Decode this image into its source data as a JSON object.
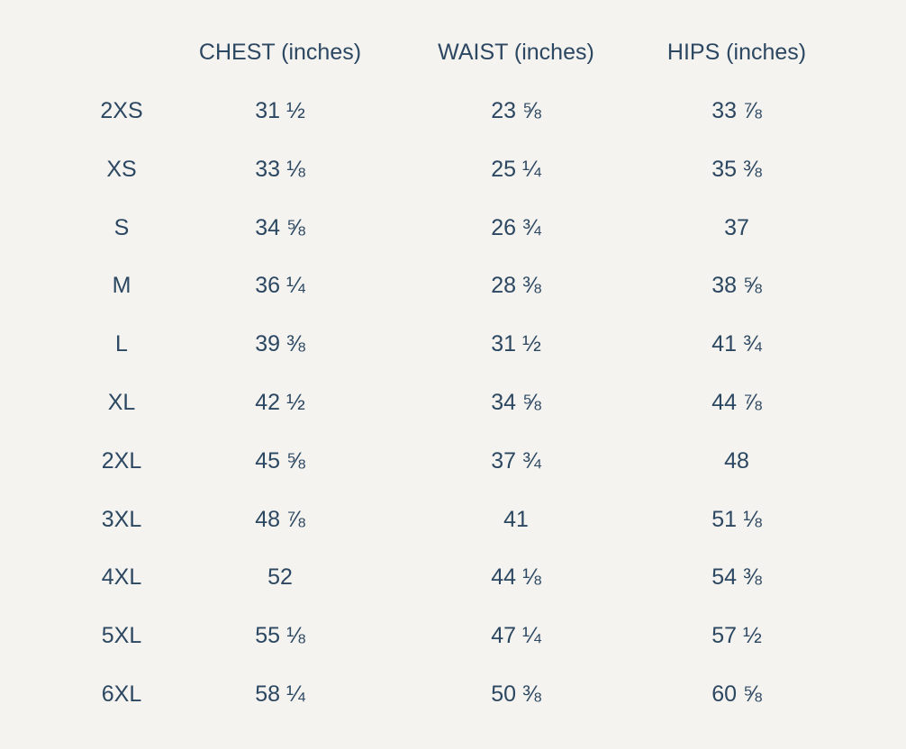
{
  "table": {
    "columns": [
      "CHEST (inches)",
      "WAIST (inches)",
      "HIPS (inches)"
    ],
    "rows": [
      [
        "2XS",
        "31 ½",
        "23 ⅝",
        "33 ⅞"
      ],
      [
        "XS",
        "33 ⅛",
        "25 ¼",
        "35 ⅜"
      ],
      [
        "S",
        "34 ⅝",
        "26 ¾",
        "37"
      ],
      [
        "M",
        "36 ¼",
        "28 ⅜",
        "38 ⅝"
      ],
      [
        "L",
        "39 ⅜",
        "31 ½",
        "41 ¾"
      ],
      [
        "XL",
        "42 ½",
        "34 ⅝",
        "44 ⅞"
      ],
      [
        "2XL",
        "45 ⅝",
        "37 ¾",
        "48"
      ],
      [
        "3XL",
        "48 ⅞",
        "41",
        "51 ⅛"
      ],
      [
        "4XL",
        "52",
        "44 ⅛",
        "54 ⅜"
      ],
      [
        "5XL",
        "55 ⅛",
        "47 ¼",
        "57 ½"
      ],
      [
        "6XL",
        "58 ¼",
        "50 ⅜",
        "60 ⅝"
      ]
    ]
  }
}
